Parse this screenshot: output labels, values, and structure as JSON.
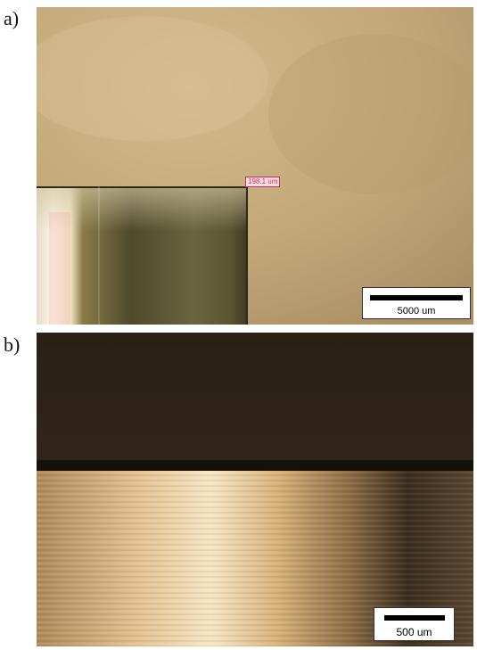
{
  "panels": [
    {
      "label": "a)",
      "measurement": "198.1 um",
      "scale_bar": "5000 um"
    },
    {
      "label": "b)",
      "scale_bar": "500 um"
    }
  ],
  "colors": {
    "background_a": "#c4ab7c",
    "bar_a": "#6b6438",
    "background_b": "#2e2418",
    "bar_b": "#c9a06a"
  }
}
